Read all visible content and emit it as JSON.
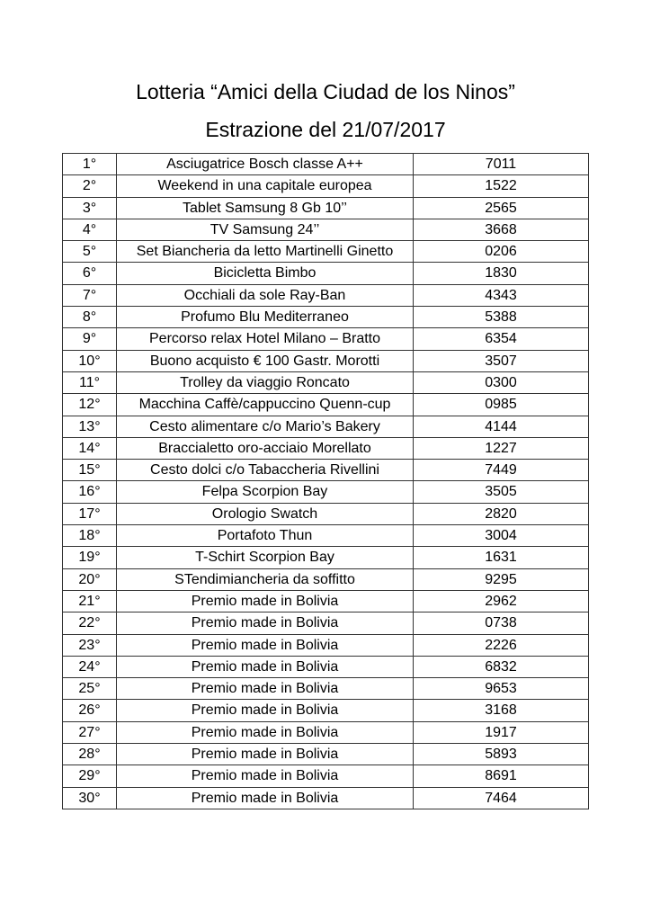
{
  "title": "Lotteria “Amici della Ciudad de los Ninos”",
  "subtitle": "Estrazione del 21/07/2017",
  "rows": [
    {
      "place": "1°",
      "prize": "Asciugatrice Bosch classe A++",
      "number": "7011"
    },
    {
      "place": "2°",
      "prize": "Weekend in una capitale europea",
      "number": "1522"
    },
    {
      "place": "3°",
      "prize": "Tablet Samsung 8 Gb 10’’",
      "number": "2565"
    },
    {
      "place": "4°",
      "prize": "TV Samsung 24’’",
      "number": "3668"
    },
    {
      "place": "5°",
      "prize": "Set Biancheria da letto Martinelli Ginetto",
      "number": "0206"
    },
    {
      "place": "6°",
      "prize": "Bicicletta Bimbo",
      "number": "1830"
    },
    {
      "place": "7°",
      "prize": "Occhiali da sole Ray-Ban",
      "number": "4343"
    },
    {
      "place": "8°",
      "prize": "Profumo Blu Mediterraneo",
      "number": "5388"
    },
    {
      "place": "9°",
      "prize": "Percorso relax Hotel Milano – Bratto",
      "number": "6354"
    },
    {
      "place": "10°",
      "prize": "Buono acquisto € 100 Gastr. Morotti",
      "number": "3507"
    },
    {
      "place": "11°",
      "prize": "Trolley da viaggio Roncato",
      "number": "0300"
    },
    {
      "place": "12°",
      "prize": "Macchina Caffè/cappuccino Quenn-cup",
      "number": "0985"
    },
    {
      "place": "13°",
      "prize": "Cesto alimentare c/o Mario’s Bakery",
      "number": "4144"
    },
    {
      "place": "14°",
      "prize": "Braccialetto oro-acciaio Morellato",
      "number": "1227"
    },
    {
      "place": "15°",
      "prize": "Cesto dolci c/o Tabaccheria Rivellini",
      "number": "7449"
    },
    {
      "place": "16°",
      "prize": "Felpa Scorpion Bay",
      "number": "3505"
    },
    {
      "place": "17°",
      "prize": "Orologio Swatch",
      "number": "2820"
    },
    {
      "place": "18°",
      "prize": "Portafoto Thun",
      "number": "3004"
    },
    {
      "place": "19°",
      "prize": "T-Schirt Scorpion Bay",
      "number": "1631"
    },
    {
      "place": "20°",
      "prize": "STendimiancheria da soffitto",
      "number": "9295"
    },
    {
      "place": "21°",
      "prize": "Premio made in Bolivia",
      "number": "2962"
    },
    {
      "place": "22°",
      "prize": "Premio made in Bolivia",
      "number": "0738"
    },
    {
      "place": "23°",
      "prize": "Premio made in Bolivia",
      "number": "2226"
    },
    {
      "place": "24°",
      "prize": "Premio made in Bolivia",
      "number": "6832"
    },
    {
      "place": "25°",
      "prize": "Premio made in Bolivia",
      "number": "9653"
    },
    {
      "place": "26°",
      "prize": "Premio made in Bolivia",
      "number": "3168"
    },
    {
      "place": "27°",
      "prize": "Premio made in Bolivia",
      "number": "1917"
    },
    {
      "place": "28°",
      "prize": "Premio made in Bolivia",
      "number": "5893"
    },
    {
      "place": "29°",
      "prize": "Premio made in Bolivia",
      "number": "8691"
    },
    {
      "place": "30°",
      "prize": "Premio made in Bolivia",
      "number": "7464"
    }
  ]
}
